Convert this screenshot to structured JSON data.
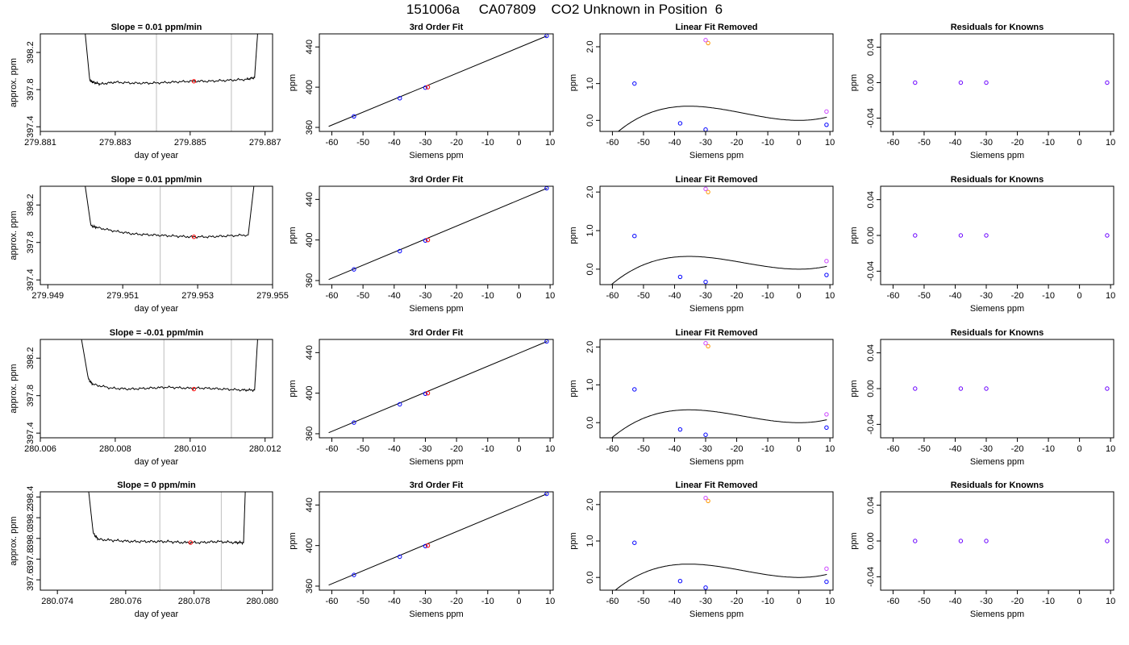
{
  "title": "151006a     CA07809    CO2 Unknown in Position  6",
  "colors": {
    "axis": "#000000",
    "line": "#000000",
    "vline": "#c8c8c8",
    "known": "#0000ff",
    "residual": "#6a00ff",
    "unknown_orange": "#ff9900",
    "unknown_purple": "#cc44ff",
    "red": "#ff0000"
  },
  "chart_data": [
    {
      "type": "line",
      "panel": "time-series",
      "row": 1,
      "title": "Slope =  0.01  ppm/min",
      "xlabel": "day of year",
      "ylabel": "approx. ppm",
      "xlim": [
        279.881,
        279.8872
      ],
      "ylim": [
        397.35,
        398.4
      ],
      "xticks": [
        279.881,
        279.883,
        279.885,
        279.887
      ],
      "xtick_labels": [
        "279.881",
        "279.883",
        "279.885",
        "279.887"
      ],
      "yticks": [
        397.4,
        397.8,
        398.2
      ],
      "ytick_labels": [
        "397.4",
        "397.8",
        "398.2"
      ],
      "series": [
        {
          "x": [
            279.8818,
            279.8822,
            279.88232,
            279.8824,
            279.8826,
            279.883,
            279.8835,
            279.884,
            279.8845,
            279.885,
            279.8855,
            279.886,
            279.8865,
            279.88672,
            279.8868,
            279.8869
          ],
          "y": [
            398.5,
            398.4,
            397.9,
            397.88,
            397.86,
            397.88,
            397.87,
            397.87,
            397.88,
            397.89,
            397.89,
            397.9,
            397.91,
            397.93,
            398.4,
            398.5
          ]
        }
      ],
      "vlines": [
        279.8841,
        279.8861
      ],
      "marker": {
        "x": 279.8851,
        "y": 397.89
      }
    },
    {
      "type": "scatter",
      "panel": "fit",
      "row": 1,
      "title": "3rd Order Fit",
      "xlabel": "Siemens ppm",
      "ylabel": "ppm",
      "xlim": [
        -64,
        11
      ],
      "ylim": [
        356,
        453
      ],
      "xticks": [
        -60,
        -50,
        -40,
        -30,
        -20,
        -10,
        0,
        10
      ],
      "xtick_labels": [
        "-60",
        "-50",
        "-40",
        "-30",
        "-20",
        "-10",
        "0",
        "10"
      ],
      "yticks": [
        360,
        400,
        440
      ],
      "ytick_labels": [
        "360",
        "400",
        "440"
      ],
      "fit": {
        "x": [
          -61,
          9
        ],
        "y": [
          361,
          451
        ]
      },
      "known": {
        "x": [
          -52.9,
          -38.2,
          -30.0,
          8.9
        ],
        "y": [
          371,
          389,
          399.5,
          451
        ]
      },
      "unknown": {
        "x": [
          -29.2
        ],
        "y": [
          400
        ]
      }
    },
    {
      "type": "scatter",
      "panel": "linear-fit-removed",
      "row": 1,
      "title": "Linear Fit Removed",
      "xlabel": "Siemens ppm",
      "ylabel": "ppm",
      "xlim": [
        -64,
        11
      ],
      "ylim": [
        -0.3,
        2.35
      ],
      "xticks": [
        -60,
        -50,
        -40,
        -30,
        -20,
        -10,
        0,
        10
      ],
      "xtick_labels": [
        "-60",
        "-50",
        "-40",
        "-30",
        "-20",
        "-10",
        "0",
        "10"
      ],
      "yticks": [
        0.0,
        1.0,
        2.0
      ],
      "ytick_labels": [
        "0.0",
        "1.0",
        "2.0"
      ],
      "curve_a": 1.0,
      "known": {
        "x": [
          -52.9,
          -38.2,
          -30.0,
          8.9
        ],
        "y": [
          1.0,
          -0.08,
          -0.25,
          -0.12
        ]
      },
      "unknown_orange": {
        "x": [
          -29.2
        ],
        "y": [
          2.1
        ]
      },
      "unknown_purple": {
        "x": [
          -30.0,
          8.9
        ],
        "y": [
          2.18,
          0.24
        ]
      }
    },
    {
      "type": "scatter",
      "panel": "residuals",
      "row": 1,
      "title": "Residuals for Knowns",
      "xlabel": "Siemens ppm",
      "ylabel": "ppm",
      "xlim": [
        -64,
        11
      ],
      "ylim": [
        -0.055,
        0.055
      ],
      "xticks": [
        -60,
        -50,
        -40,
        -30,
        -20,
        -10,
        0,
        10
      ],
      "xtick_labels": [
        "-60",
        "-50",
        "-40",
        "-30",
        "-20",
        "-10",
        "0",
        "10"
      ],
      "yticks": [
        -0.04,
        0.0,
        0.04
      ],
      "ytick_labels": [
        "-0.04",
        "0.00",
        "0.04"
      ],
      "points": {
        "x": [
          -52.9,
          -38.2,
          -30.0,
          8.9
        ],
        "y": [
          0,
          0,
          0,
          0
        ]
      }
    },
    {
      "type": "line",
      "panel": "time-series",
      "row": 2,
      "title": "Slope =  0.01  ppm/min",
      "xlabel": "day of year",
      "ylabel": "approx. ppm",
      "xlim": [
        279.9488,
        279.955
      ],
      "ylim": [
        397.35,
        398.4
      ],
      "xticks": [
        279.949,
        279.951,
        279.953,
        279.955
      ],
      "xtick_labels": [
        "279.949",
        "279.951",
        "279.953",
        "279.955"
      ],
      "yticks": [
        397.4,
        397.8,
        398.2
      ],
      "ytick_labels": [
        "397.4",
        "397.8",
        "398.2"
      ],
      "series": [
        {
          "x": [
            279.9495,
            279.95,
            279.95015,
            279.9503,
            279.9508,
            279.9513,
            279.9518,
            279.9523,
            279.9528,
            279.9533,
            279.9538,
            279.95435,
            279.9545,
            279.9546
          ],
          "y": [
            398.5,
            398.4,
            397.98,
            397.96,
            397.92,
            397.89,
            397.88,
            397.87,
            397.86,
            397.86,
            397.87,
            397.88,
            398.4,
            398.5
          ]
        }
      ],
      "vlines": [
        279.952,
        279.9539
      ],
      "marker": {
        "x": 279.9529,
        "y": 397.86
      }
    },
    {
      "type": "scatter",
      "panel": "fit",
      "row": 2,
      "title": "3rd Order Fit",
      "xlabel": "Siemens ppm",
      "ylabel": "ppm",
      "xlim": [
        -64,
        11
      ],
      "ylim": [
        356,
        453
      ],
      "xticks": [
        -60,
        -50,
        -40,
        -30,
        -20,
        -10,
        0,
        10
      ],
      "xtick_labels": [
        "-60",
        "-50",
        "-40",
        "-30",
        "-20",
        "-10",
        "0",
        "10"
      ],
      "yticks": [
        360,
        400,
        440
      ],
      "ytick_labels": [
        "360",
        "400",
        "440"
      ],
      "fit": {
        "x": [
          -61,
          9
        ],
        "y": [
          361,
          451
        ]
      },
      "known": {
        "x": [
          -52.9,
          -38.2,
          -30.0,
          8.9
        ],
        "y": [
          371,
          389,
          399.5,
          451
        ]
      },
      "unknown": {
        "x": [
          -29.2
        ],
        "y": [
          400
        ]
      }
    },
    {
      "type": "scatter",
      "panel": "linear-fit-removed",
      "row": 2,
      "title": "Linear Fit Removed",
      "xlabel": "Siemens ppm",
      "ylabel": "ppm",
      "xlim": [
        -64,
        11
      ],
      "ylim": [
        -0.4,
        2.15
      ],
      "xticks": [
        -60,
        -50,
        -40,
        -30,
        -20,
        -10,
        0,
        10
      ],
      "xtick_labels": [
        "-60",
        "-50",
        "-40",
        "-30",
        "-20",
        "-10",
        "0",
        "10"
      ],
      "yticks": [
        0.0,
        1.0,
        2.0
      ],
      "ytick_labels": [
        "0.0",
        "1.0",
        "2.0"
      ],
      "curve_a": 0.86,
      "known": {
        "x": [
          -52.9,
          -38.2,
          -30.0,
          8.9
        ],
        "y": [
          0.86,
          -0.2,
          -0.33,
          -0.15
        ]
      },
      "unknown_orange": {
        "x": [
          -29.2
        ],
        "y": [
          2.0
        ]
      },
      "unknown_purple": {
        "x": [
          -30.0,
          8.9
        ],
        "y": [
          2.08,
          0.21
        ]
      }
    },
    {
      "type": "scatter",
      "panel": "residuals",
      "row": 2,
      "title": "Residuals for Knowns",
      "xlabel": "Siemens ppm",
      "ylabel": "ppm",
      "xlim": [
        -64,
        11
      ],
      "ylim": [
        -0.055,
        0.055
      ],
      "xticks": [
        -60,
        -50,
        -40,
        -30,
        -20,
        -10,
        0,
        10
      ],
      "xtick_labels": [
        "-60",
        "-50",
        "-40",
        "-30",
        "-20",
        "-10",
        "0",
        "10"
      ],
      "yticks": [
        -0.04,
        0.0,
        0.04
      ],
      "ytick_labels": [
        "-0.04",
        "0.00",
        "0.04"
      ],
      "points": {
        "x": [
          -52.9,
          -38.2,
          -30.0,
          8.9
        ],
        "y": [
          0,
          0,
          0,
          0
        ]
      }
    },
    {
      "type": "line",
      "panel": "time-series",
      "row": 3,
      "title": "Slope =  -0.01  ppm/min",
      "xlabel": "day of year",
      "ylabel": "approx. ppm",
      "xlim": [
        280.006,
        280.0122
      ],
      "ylim": [
        397.35,
        398.4
      ],
      "xticks": [
        280.006,
        280.008,
        280.01,
        280.012
      ],
      "xtick_labels": [
        "280.006",
        "280.008",
        "280.010",
        "280.012"
      ],
      "yticks": [
        397.4,
        397.8,
        398.2
      ],
      "ytick_labels": [
        "397.4",
        "397.8",
        "398.2"
      ],
      "series": [
        {
          "x": [
            280.0067,
            280.0071,
            280.00728,
            280.0074,
            280.0079,
            280.0084,
            280.0089,
            280.0094,
            280.0099,
            280.0104,
            280.0109,
            280.0114,
            280.01172,
            280.0118,
            280.0119
          ],
          "y": [
            398.5,
            398.4,
            397.98,
            397.92,
            397.88,
            397.87,
            397.88,
            397.89,
            397.88,
            397.88,
            397.87,
            397.86,
            397.86,
            398.4,
            398.5
          ]
        }
      ],
      "vlines": [
        280.0093,
        280.0111
      ],
      "marker": {
        "x": 280.0101,
        "y": 397.87
      }
    },
    {
      "type": "scatter",
      "panel": "fit",
      "row": 3,
      "title": "3rd Order Fit",
      "xlabel": "Siemens ppm",
      "ylabel": "ppm",
      "xlim": [
        -64,
        11
      ],
      "ylim": [
        356,
        453
      ],
      "xticks": [
        -60,
        -50,
        -40,
        -30,
        -20,
        -10,
        0,
        10
      ],
      "xtick_labels": [
        "-60",
        "-50",
        "-40",
        "-30",
        "-20",
        "-10",
        "0",
        "10"
      ],
      "yticks": [
        360,
        400,
        440
      ],
      "ytick_labels": [
        "360",
        "400",
        "440"
      ],
      "fit": {
        "x": [
          -61,
          9
        ],
        "y": [
          361,
          451
        ]
      },
      "known": {
        "x": [
          -52.9,
          -38.2,
          -30.0,
          8.9
        ],
        "y": [
          371,
          389,
          399.5,
          451
        ]
      },
      "unknown": {
        "x": [
          -29.2
        ],
        "y": [
          400
        ]
      }
    },
    {
      "type": "scatter",
      "panel": "linear-fit-removed",
      "row": 3,
      "title": "Linear Fit Removed",
      "xlabel": "Siemens ppm",
      "ylabel": "ppm",
      "xlim": [
        -64,
        11
      ],
      "ylim": [
        -0.4,
        2.2
      ],
      "xticks": [
        -60,
        -50,
        -40,
        -30,
        -20,
        -10,
        0,
        10
      ],
      "xtick_labels": [
        "-60",
        "-50",
        "-40",
        "-30",
        "-20",
        "-10",
        "0",
        "10"
      ],
      "yticks": [
        0.0,
        1.0,
        2.0
      ],
      "ytick_labels": [
        "0.0",
        "1.0",
        "2.0"
      ],
      "curve_a": 0.88,
      "known": {
        "x": [
          -52.9,
          -38.2,
          -30.0,
          8.9
        ],
        "y": [
          0.88,
          -0.18,
          -0.32,
          -0.13
        ]
      },
      "unknown_orange": {
        "x": [
          -29.2
        ],
        "y": [
          2.02
        ]
      },
      "unknown_purple": {
        "x": [
          -30.0,
          8.9
        ],
        "y": [
          2.1,
          0.22
        ]
      }
    },
    {
      "type": "scatter",
      "panel": "residuals",
      "row": 3,
      "title": "Residuals for Knowns",
      "xlabel": "Siemens ppm",
      "ylabel": "ppm",
      "xlim": [
        -64,
        11
      ],
      "ylim": [
        -0.055,
        0.055
      ],
      "xticks": [
        -60,
        -50,
        -40,
        -30,
        -20,
        -10,
        0,
        10
      ],
      "xtick_labels": [
        "-60",
        "-50",
        "-40",
        "-30",
        "-20",
        "-10",
        "0",
        "10"
      ],
      "yticks": [
        -0.04,
        0.0,
        0.04
      ],
      "ytick_labels": [
        "-0.04",
        "0.00",
        "0.04"
      ],
      "points": {
        "x": [
          -52.9,
          -38.2,
          -30.0,
          8.9
        ],
        "y": [
          0,
          0,
          0,
          0
        ]
      }
    },
    {
      "type": "line",
      "panel": "time-series",
      "row": 4,
      "title": "Slope =  0  ppm/min",
      "xlabel": "day of year",
      "ylabel": "approx. ppm",
      "xlim": [
        280.0735,
        280.0803
      ],
      "ylim": [
        397.5,
        398.45
      ],
      "xticks": [
        280.074,
        280.076,
        280.078,
        280.08
      ],
      "xtick_labels": [
        "280.074",
        "280.076",
        "280.078",
        "280.080"
      ],
      "yticks": [
        397.6,
        397.8,
        398.0,
        398.2,
        398.4
      ],
      "ytick_labels": [
        "397.6",
        "397.8",
        "398.0",
        "398.2",
        "398.4"
      ],
      "series": [
        {
          "x": [
            280.0744,
            280.0749,
            280.07505,
            280.0752,
            280.0757,
            280.0762,
            280.0767,
            280.0772,
            280.0777,
            280.0782,
            280.0787,
            280.0792,
            280.07945,
            280.0795,
            280.0796
          ],
          "y": [
            398.6,
            398.5,
            398.05,
            397.99,
            397.98,
            397.97,
            397.97,
            397.97,
            397.96,
            397.96,
            397.97,
            397.96,
            397.96,
            398.45,
            398.6
          ]
        }
      ],
      "vlines": [
        280.077,
        280.0788
      ],
      "marker": {
        "x": 280.0779,
        "y": 397.96
      }
    },
    {
      "type": "scatter",
      "panel": "fit",
      "row": 4,
      "title": "3rd Order Fit",
      "xlabel": "Siemens ppm",
      "ylabel": "ppm",
      "xlim": [
        -64,
        11
      ],
      "ylim": [
        356,
        453
      ],
      "xticks": [
        -60,
        -50,
        -40,
        -30,
        -20,
        -10,
        0,
        10
      ],
      "xtick_labels": [
        "-60",
        "-50",
        "-40",
        "-30",
        "-20",
        "-10",
        "0",
        "10"
      ],
      "yticks": [
        360,
        400,
        440
      ],
      "ytick_labels": [
        "360",
        "400",
        "440"
      ],
      "fit": {
        "x": [
          -61,
          9
        ],
        "y": [
          361,
          451
        ]
      },
      "known": {
        "x": [
          -52.9,
          -38.2,
          -30.0,
          8.9
        ],
        "y": [
          371,
          389,
          399.5,
          451
        ]
      },
      "unknown": {
        "x": [
          -29.2
        ],
        "y": [
          400
        ]
      }
    },
    {
      "type": "scatter",
      "panel": "linear-fit-removed",
      "row": 4,
      "title": "Linear Fit Removed",
      "xlabel": "Siemens ppm",
      "ylabel": "ppm",
      "xlim": [
        -64,
        11
      ],
      "ylim": [
        -0.35,
        2.35
      ],
      "xticks": [
        -60,
        -50,
        -40,
        -30,
        -20,
        -10,
        0,
        10
      ],
      "xtick_labels": [
        "-60",
        "-50",
        "-40",
        "-30",
        "-20",
        "-10",
        "0",
        "10"
      ],
      "yticks": [
        0.0,
        1.0,
        2.0
      ],
      "ytick_labels": [
        "0.0",
        "1.0",
        "2.0"
      ],
      "curve_a": 0.95,
      "known": {
        "x": [
          -52.9,
          -38.2,
          -30.0,
          8.9
        ],
        "y": [
          0.95,
          -0.1,
          -0.28,
          -0.12
        ]
      },
      "unknown_orange": {
        "x": [
          -29.2
        ],
        "y": [
          2.1
        ]
      },
      "unknown_purple": {
        "x": [
          -30.0,
          8.9
        ],
        "y": [
          2.18,
          0.24
        ]
      }
    },
    {
      "type": "scatter",
      "panel": "residuals",
      "row": 4,
      "title": "Residuals for Knowns",
      "xlabel": "Siemens ppm",
      "ylabel": "ppm",
      "xlim": [
        -64,
        11
      ],
      "ylim": [
        -0.055,
        0.055
      ],
      "xticks": [
        -60,
        -50,
        -40,
        -30,
        -20,
        -10,
        0,
        10
      ],
      "xtick_labels": [
        "-60",
        "-50",
        "-40",
        "-30",
        "-20",
        "-10",
        "0",
        "10"
      ],
      "yticks": [
        -0.04,
        0.0,
        0.04
      ],
      "ytick_labels": [
        "-0.04",
        "0.00",
        "0.04"
      ],
      "points": {
        "x": [
          -52.9,
          -38.2,
          -30.0,
          8.9
        ],
        "y": [
          0,
          0,
          0,
          0
        ]
      }
    }
  ]
}
